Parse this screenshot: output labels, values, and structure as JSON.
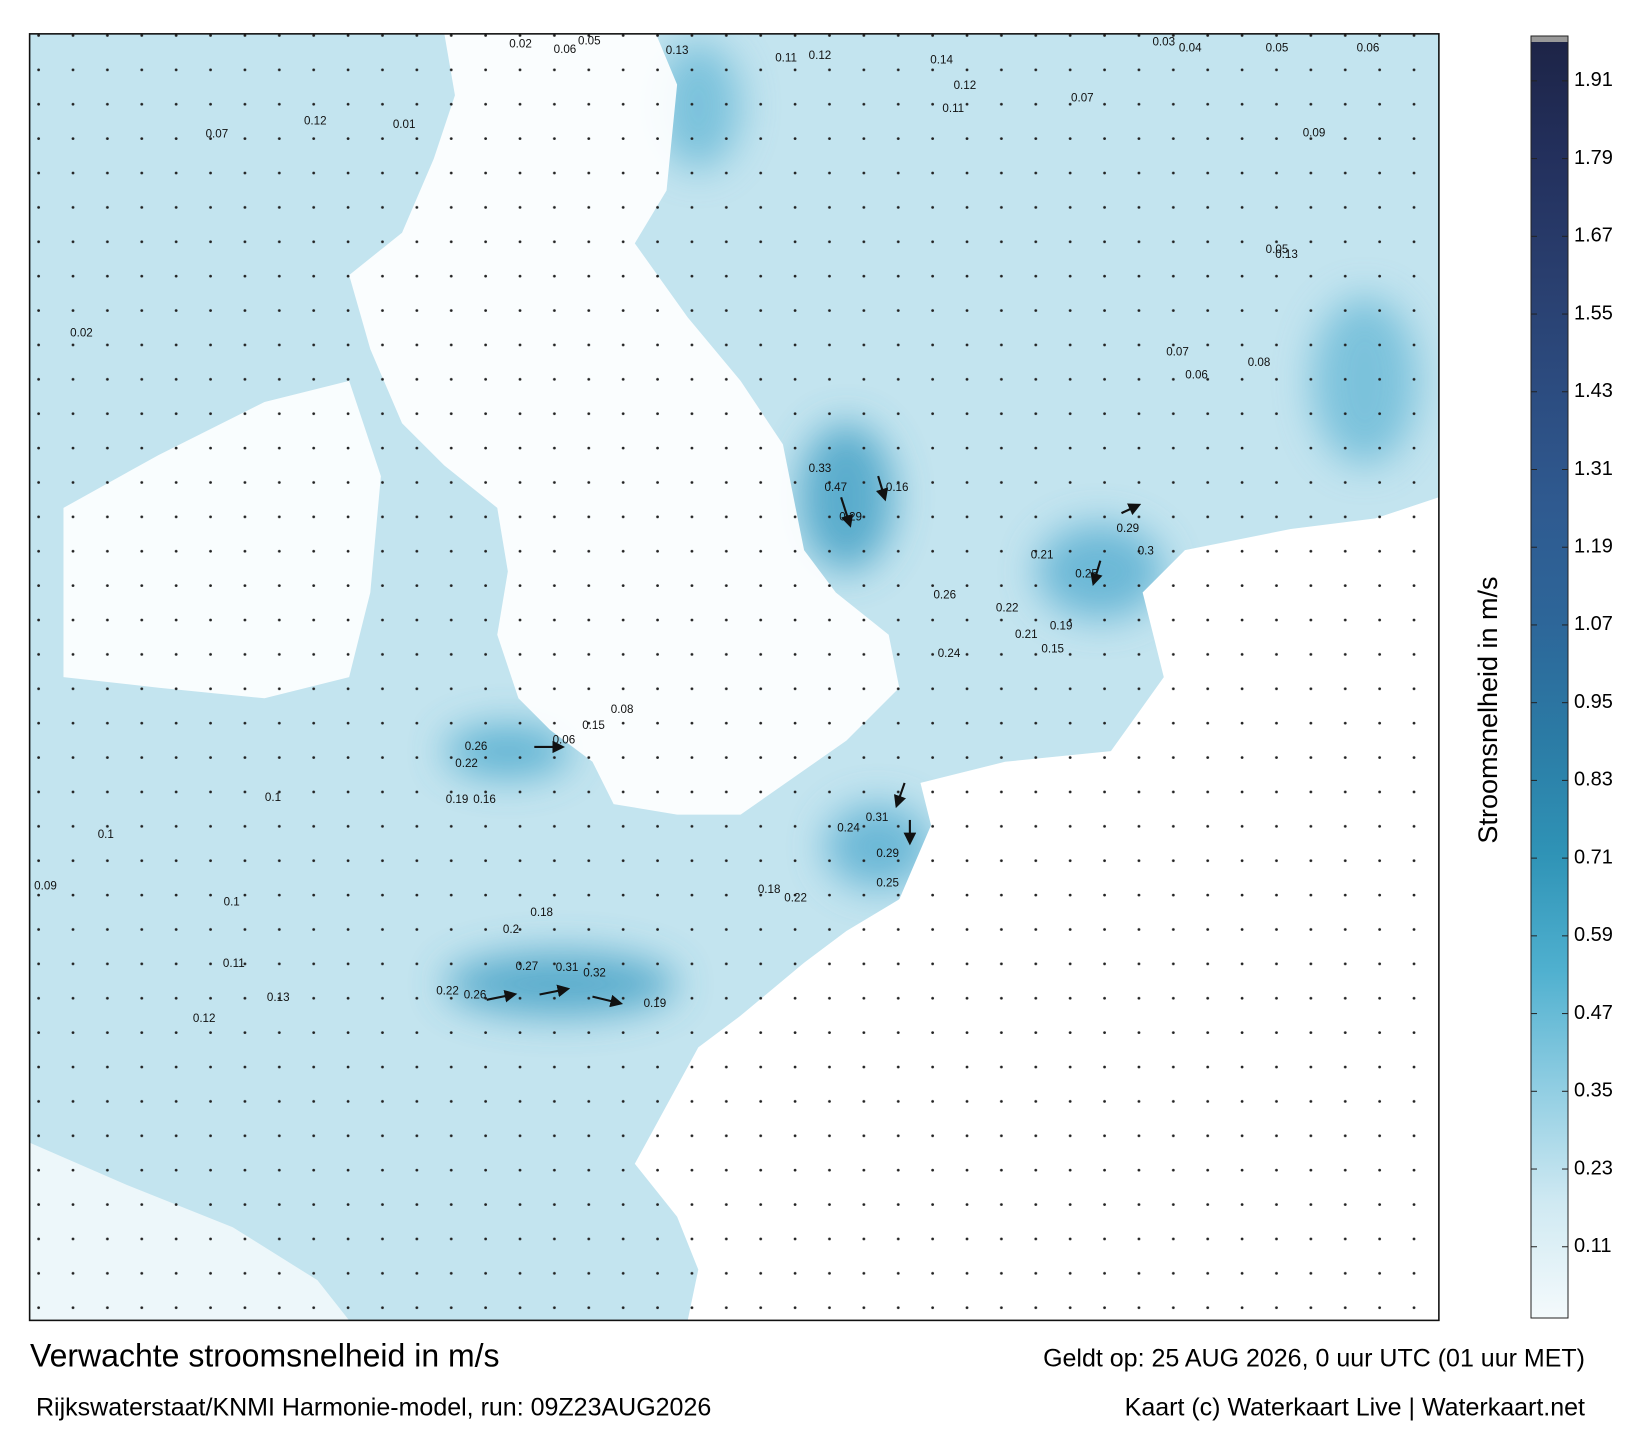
{
  "title": "Verwachte stroomsnelheid in m/s",
  "model_run": "Rijkswaterstaat/KNMI Harmonie-model, run: 09Z23AUG2026",
  "valid_time": "Geldt op: 25 AUG 2026, 0 uur UTC (01 uur MET)",
  "credit": "Kaart (c) Waterkaart Live | Waterkaart.net",
  "colorbar": {
    "label": "Stroomsnelheid in m/s",
    "clim": [
      0,
      1.97
    ],
    "ticks": [
      0.11,
      0.23,
      0.35,
      0.47,
      0.59,
      0.71,
      0.83,
      0.95,
      1.07,
      1.19,
      1.31,
      1.43,
      1.55,
      1.67,
      1.79,
      1.91
    ],
    "colors": [
      "#f4fafc",
      "#cfe9f2",
      "#8fcde2",
      "#4fb0cf",
      "#2f93b6",
      "#2b7ba5",
      "#2d6699",
      "#2f5a90",
      "#2c4c80",
      "#293e6e",
      "#23305d",
      "#1d2447"
    ]
  },
  "map_labels": [
    "0.14",
    "0.12",
    "0.11",
    "0.13",
    "0.02",
    "0.06",
    "0.05",
    "0.03",
    "0.04",
    "0.05",
    "0.06",
    "0.12",
    "0.11",
    "0.07",
    "0.09",
    "0.13",
    "0.07",
    "0.06",
    "0.08",
    "0.16",
    "0.47",
    "0.33",
    "0.29",
    "0.21",
    "0.25",
    "0.29",
    "0.3",
    "0.22",
    "0.21",
    "0.19",
    "0.15",
    "0.24",
    "0.26",
    "0.31",
    "0.24",
    "0.29",
    "0.25",
    "0.22",
    "0.18",
    "0.27",
    "0.31",
    "0.32",
    "0.19",
    "0.26",
    "0.22",
    "0.18",
    "0.2",
    "0.13",
    "0.12",
    "0.11",
    "0.1",
    "0.1",
    "0.1",
    "0.09",
    "0.26",
    "0.22",
    "0.19",
    "0.16",
    "0.06",
    "0.15",
    "0.08",
    "0.07",
    "0.12",
    "0.05",
    "0.01",
    "0.02"
  ]
}
